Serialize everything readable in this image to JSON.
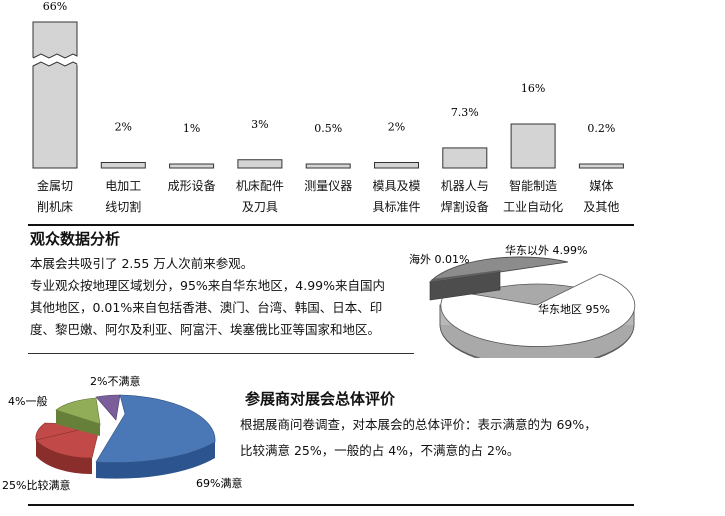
{
  "chart_data": [
    {
      "type": "bar",
      "categories": [
        "金属切\n削机床",
        "电加工\n线切割",
        "成形设备",
        "机床配件\n及刀具",
        "测量仪器",
        "模具及模\n具标准件",
        "机器人与\n焊割设备",
        "智能制造\n工业自动化",
        "媒体\n及其他"
      ],
      "values": [
        66,
        2,
        1,
        3,
        0.5,
        2,
        7.3,
        16,
        0.2
      ],
      "value_labels": [
        "66%",
        "2%",
        "1%",
        "3%",
        "0.5%",
        "2%",
        "7.3%",
        "16%",
        "0.2%"
      ],
      "axis_break": true,
      "bar_color": "#d4d4d4"
    },
    {
      "type": "pie",
      "labels": [
        "华东地区 95%",
        "华东以外 4.99%",
        "海外 0.01%"
      ],
      "values": [
        95,
        4.99,
        0.01
      ],
      "colors": [
        "#ffffff",
        "#8c8c8c",
        "#606060"
      ],
      "style": "3d-exploded"
    },
    {
      "type": "pie",
      "labels": [
        "69%满意",
        "25%比较满意",
        "4%一般",
        "2%不满意"
      ],
      "values": [
        69,
        25,
        4,
        2
      ],
      "colors": [
        "#4a78b6",
        "#c14a48",
        "#92ad57",
        "#7a5f9a"
      ],
      "style": "3d-exploded"
    }
  ],
  "audience": {
    "heading": "观众数据分析",
    "lines": [
      "本展会共吸引了 2.55 万人次前来参观。",
      "专业观众按地理区域划分，95%来自华东地区，4.99%来自国内",
      "其他地区，0.01%来自包括香港、澳门、台湾、韩国、日本、印",
      "度、黎巴嫩、阿尔及利亚、阿富汗、埃塞俄比亚等国家和地区。"
    ]
  },
  "exhibitor": {
    "heading": "参展商对展会总体评价",
    "lines": [
      "根据展商问卷调查，对本展会的总体评价：表示满意的为 69%，",
      "比较满意 25%，一般的占 4%，不满意的占 2%。"
    ]
  }
}
